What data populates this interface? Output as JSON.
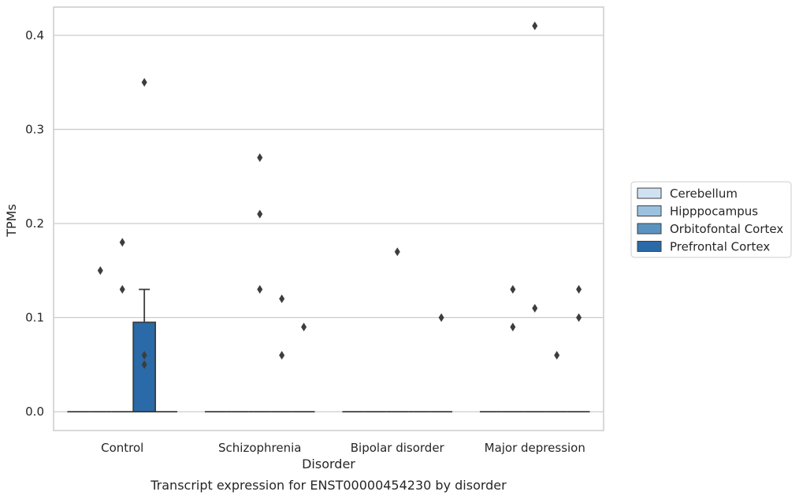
{
  "chart_data": {
    "type": "box",
    "caption": "Transcript expression for ENST00000454230 by disorder",
    "xlabel": "Disorder",
    "ylabel": "TPMs",
    "categories": [
      "Control",
      "Schizophrenia",
      "Bipolar disorder",
      "Major depression"
    ],
    "ylim": [
      -0.02,
      0.43
    ],
    "yticks": [
      0.0,
      0.1,
      0.2,
      0.3,
      0.4
    ],
    "ytick_labels": [
      "0.0",
      "0.1",
      "0.2",
      "0.3",
      "0.4"
    ],
    "grid": "horizontal",
    "legend_position": "right",
    "series": [
      {
        "name": "Cerebellum",
        "color": "#d0e2f2",
        "boxes": [
          {
            "q1": 0,
            "median": 0,
            "q3": 0,
            "whisker_low": 0,
            "whisker_high": 0,
            "outliers": []
          },
          {
            "q1": 0,
            "median": 0,
            "q3": 0,
            "whisker_low": 0,
            "whisker_high": 0,
            "outliers": []
          },
          {
            "q1": 0,
            "median": 0,
            "q3": 0,
            "whisker_low": 0,
            "whisker_high": 0,
            "outliers": []
          },
          {
            "q1": 0,
            "median": 0,
            "q3": 0,
            "whisker_low": 0,
            "whisker_high": 0,
            "outliers": []
          }
        ]
      },
      {
        "name": "Hipppocampus",
        "color": "#9ac2df",
        "boxes": [
          {
            "q1": 0,
            "median": 0,
            "q3": 0,
            "whisker_low": 0,
            "whisker_high": 0,
            "outliers": [
              0.15
            ]
          },
          {
            "q1": 0,
            "median": 0,
            "q3": 0,
            "whisker_low": 0,
            "whisker_high": 0,
            "outliers": []
          },
          {
            "q1": 0,
            "median": 0,
            "q3": 0,
            "whisker_low": 0,
            "whisker_high": 0,
            "outliers": []
          },
          {
            "q1": 0,
            "median": 0,
            "q3": 0,
            "whisker_low": 0,
            "whisker_high": 0,
            "outliers": [
              0.13,
              0.09
            ]
          }
        ]
      },
      {
        "name": "Orbitofontal Cortex",
        "color": "#5b93c0",
        "boxes": [
          {
            "q1": 0,
            "median": 0,
            "q3": 0,
            "whisker_low": 0,
            "whisker_high": 0,
            "outliers": [
              0.18,
              0.13
            ]
          },
          {
            "q1": 0,
            "median": 0,
            "q3": 0,
            "whisker_low": 0,
            "whisker_high": 0,
            "outliers": [
              0.27,
              0.21,
              0.13
            ]
          },
          {
            "q1": 0,
            "median": 0,
            "q3": 0,
            "whisker_low": 0,
            "whisker_high": 0,
            "outliers": [
              0.17
            ]
          },
          {
            "q1": 0,
            "median": 0,
            "q3": 0,
            "whisker_low": 0,
            "whisker_high": 0,
            "outliers": [
              0.41,
              0.11
            ]
          }
        ]
      },
      {
        "name": "Prefrontal Cortex",
        "color": "#2a6aa8",
        "boxes": [
          {
            "q1": 0,
            "median": 0,
            "q3": 0.095,
            "whisker_low": 0,
            "whisker_high": 0.13,
            "outliers": [
              0.35,
              0.06,
              0.05
            ]
          },
          {
            "q1": 0,
            "median": 0,
            "q3": 0,
            "whisker_low": 0,
            "whisker_high": 0,
            "outliers": [
              0.12,
              0.06
            ]
          },
          {
            "q1": 0,
            "median": 0,
            "q3": 0,
            "whisker_low": 0,
            "whisker_high": 0,
            "outliers": []
          },
          {
            "q1": 0,
            "median": 0,
            "q3": 0,
            "whisker_low": 0,
            "whisker_high": 0,
            "outliers": [
              0.06
            ]
          }
        ]
      },
      {
        "name": "",
        "color": "#ffffff",
        "legend": false,
        "boxes": [
          {
            "q1": 0,
            "median": 0,
            "q3": 0,
            "whisker_low": 0,
            "whisker_high": 0,
            "outliers": []
          },
          {
            "q1": 0,
            "median": 0,
            "q3": 0,
            "whisker_low": 0,
            "whisker_high": 0,
            "outliers": [
              0.09
            ]
          },
          {
            "q1": 0,
            "median": 0,
            "q3": 0,
            "whisker_low": 0,
            "whisker_high": 0,
            "outliers": [
              0.1
            ]
          },
          {
            "q1": 0,
            "median": 0,
            "q3": 0,
            "whisker_low": 0,
            "whisker_high": 0,
            "outliers": [
              0.13,
              0.1
            ]
          }
        ]
      }
    ]
  }
}
